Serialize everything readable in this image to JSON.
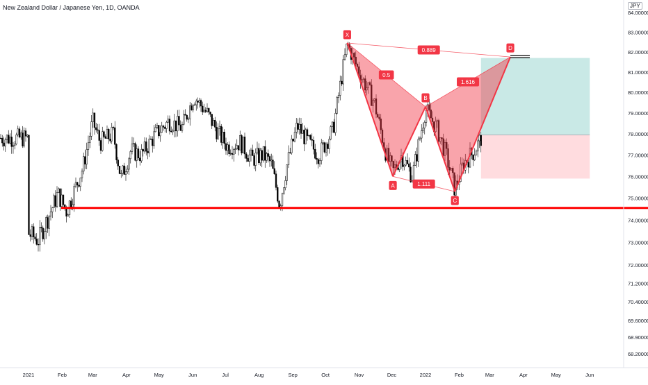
{
  "header": {
    "title": "New Zealand Dollar / Japanese Yen, 1D, OANDA",
    "currency_badge": "JPY"
  },
  "colors": {
    "up_candle": "#000000",
    "down_candle": "#000000",
    "support_line": "#ff0000",
    "pattern_fill": "#f23645",
    "pattern_stroke": "#f23645",
    "target_zone": "#b2dfdb",
    "stop_zone": "#ffcdd2",
    "label_bg": "#f23645"
  },
  "chart_data": {
    "type": "candlestick",
    "title": "New Zealand Dollar / Japanese Yen, 1D, OANDA",
    "y_axis": {
      "ticks": [
        "84.00000",
        "83.00000",
        "82.00000",
        "81.00000",
        "80.00000",
        "79.00000",
        "78.00000",
        "77.00000",
        "76.00000",
        "75.00000",
        "74.00000",
        "73.00000",
        "72.00000",
        "71.20000",
        "70.40000",
        "69.60000",
        "68.90000",
        "68.20000"
      ],
      "scale": "log"
    },
    "x_axis": {
      "ticks": [
        "2021",
        "Feb",
        "Mar",
        "Apr",
        "May",
        "Jun",
        "Jul",
        "Aug",
        "Sep",
        "Oct",
        "Nov",
        "Dec",
        "2022",
        "Feb",
        "Mar",
        "Apr",
        "May",
        "Jun"
      ]
    },
    "price_path": [
      {
        "date": "2021-01-01",
        "price": 73.4
      },
      {
        "date": "2021-01-10",
        "price": 73.1
      },
      {
        "date": "2021-01-18",
        "price": 74.0
      },
      {
        "date": "2021-01-28",
        "price": 75.2
      },
      {
        "date": "2021-02-05",
        "price": 74.4
      },
      {
        "date": "2021-02-20",
        "price": 76.4
      },
      {
        "date": "2021-03-01",
        "price": 78.6
      },
      {
        "date": "2021-03-08",
        "price": 77.6
      },
      {
        "date": "2021-03-20",
        "price": 78.0
      },
      {
        "date": "2021-03-27",
        "price": 75.9
      },
      {
        "date": "2021-04-05",
        "price": 77.2
      },
      {
        "date": "2021-04-15",
        "price": 77.0
      },
      {
        "date": "2021-04-28",
        "price": 78.0
      },
      {
        "date": "2021-05-10",
        "price": 78.6
      },
      {
        "date": "2021-05-22",
        "price": 78.3
      },
      {
        "date": "2021-06-02",
        "price": 79.8
      },
      {
        "date": "2021-06-14",
        "price": 79.0
      },
      {
        "date": "2021-06-25",
        "price": 78.0
      },
      {
        "date": "2021-07-03",
        "price": 77.4
      },
      {
        "date": "2021-07-15",
        "price": 77.6
      },
      {
        "date": "2021-07-25",
        "price": 76.8
      },
      {
        "date": "2021-08-05",
        "price": 77.0
      },
      {
        "date": "2021-08-12",
        "price": 76.6
      },
      {
        "date": "2021-08-20",
        "price": 74.7
      },
      {
        "date": "2021-08-26",
        "price": 76.4
      },
      {
        "date": "2021-09-05",
        "price": 78.4
      },
      {
        "date": "2021-09-15",
        "price": 77.6
      },
      {
        "date": "2021-09-25",
        "price": 77.0
      },
      {
        "date": "2021-10-08",
        "price": 78.2
      },
      {
        "date": "2021-10-21",
        "price": 82.4
      },
      {
        "date": "2021-11-01",
        "price": 81.0
      },
      {
        "date": "2021-11-15",
        "price": 79.5
      },
      {
        "date": "2021-11-26",
        "price": 77.0
      },
      {
        "date": "2021-12-02",
        "price": 76.2
      },
      {
        "date": "2021-12-10",
        "price": 77.0
      },
      {
        "date": "2021-12-20",
        "price": 76.0
      },
      {
        "date": "2022-01-01",
        "price": 79.2
      },
      {
        "date": "2022-01-12",
        "price": 78.2
      },
      {
        "date": "2022-01-20",
        "price": 77.0
      },
      {
        "date": "2022-01-28",
        "price": 75.4
      },
      {
        "date": "2022-02-05",
        "price": 76.6
      },
      {
        "date": "2022-02-15",
        "price": 77.2
      },
      {
        "date": "2022-02-21",
        "price": 77.8
      }
    ],
    "support_level": 74.55,
    "harmonic_pattern": {
      "points": [
        {
          "name": "X",
          "date": "2021-10-21",
          "price": 82.45
        },
        {
          "name": "A",
          "date": "2021-12-02",
          "price": 76.0
        },
        {
          "name": "B",
          "date": "2022-01-01",
          "price": 79.3
        },
        {
          "name": "C",
          "date": "2022-01-28",
          "price": 75.3
        },
        {
          "name": "D",
          "date": "2022-03-20",
          "price": 81.75
        }
      ],
      "ratios": [
        "0.889",
        "0.5",
        "1.616",
        "1.111"
      ]
    },
    "position": {
      "start_date": "2022-02-21",
      "end_date": "2022-06-01",
      "entry": 77.95,
      "target": 81.7,
      "stop": 75.9
    }
  }
}
